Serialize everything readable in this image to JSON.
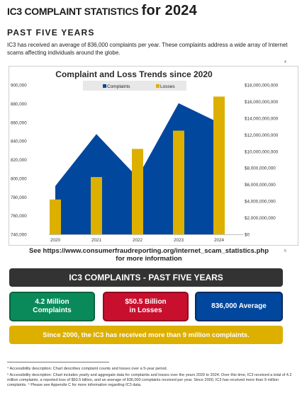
{
  "header": {
    "title_small": "IC3 COMPLAINT STATISTICS",
    "title_large": "for 2024",
    "subhead": "PAST FIVE YEARS",
    "intro": "IC3 has received an average of 836,000 complaints per year. These complaints address a wide array of Internet scams affecting individuals around the globe.",
    "footnote_mark_4": "4",
    "footnote_mark_5": "5"
  },
  "chart_data": {
    "type": "area",
    "title": "Complaint and Loss Trends since 2020",
    "categories": [
      "2020",
      "2021",
      "2022",
      "2023",
      "2024"
    ],
    "series": [
      {
        "name": "Complaints",
        "kind": "area",
        "axis": "left",
        "color": "#00479d",
        "values": [
          791790,
          847376,
          800944,
          880418,
          859532
        ]
      },
      {
        "name": "Losses",
        "kind": "bar",
        "axis": "right",
        "color": "#ddb000",
        "values": [
          4200000000,
          6900000000,
          10300000000,
          12500000000,
          16600000000
        ]
      }
    ],
    "y_left": {
      "range": [
        740000,
        900000
      ],
      "ticks": [
        "740,000",
        "760,000",
        "780,000",
        "800,000",
        "820,000",
        "840,000",
        "860,000",
        "880,000",
        "900,000"
      ]
    },
    "y_right": {
      "range": [
        0,
        18000000000
      ],
      "ticks": [
        "$0",
        "$2,000,000,000",
        "$4,000,000,000",
        "$6,000,000,000",
        "$8,000,000,000",
        "$10,000,000,000",
        "$12,000,000,000",
        "$14,000,000,000",
        "$16,000,000,000",
        "$18,000,000,000"
      ]
    },
    "legend": "top",
    "grid": false
  },
  "source_line1": "See https://www.consumerfraudreporting.org/internet_scam_statistics.php",
  "source_line2": "for more information",
  "summary": {
    "banner": "IC3 COMPLAINTS - PAST FIVE YEARS",
    "stat1_line1": "4.2 Million",
    "stat1_line2": "Complaints",
    "stat2_line1": "$50.5 Billion",
    "stat2_line2": "in Losses",
    "stat3": "836,000 Average",
    "since2000": "Since 2000, the IC3 has received more than 9 million complaints."
  },
  "footnotes": {
    "fn4": "⁴ Accessibility description: Chart describes complaint counts and losses over a 5-year period.",
    "fn5": "⁵ Accessibility description: Chart includes yearly and aggregate data for complaints and losses over the years 2020 to 2024. Over this time, IC3 received a total of 4.2 million complaints, a reported loss of $50.5 billion, and an average of 836,000 complaints received per year. Since 2000, IC3 has received more than 9 million complaints. ⁴ Please see Appendix C for more information regarding IC3 data."
  }
}
